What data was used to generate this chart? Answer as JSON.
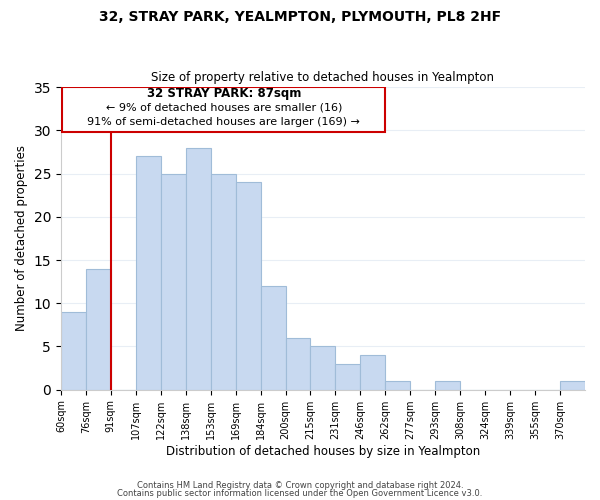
{
  "title": "32, STRAY PARK, YEALMPTON, PLYMOUTH, PL8 2HF",
  "subtitle": "Size of property relative to detached houses in Yealmpton",
  "xlabel": "Distribution of detached houses by size in Yealmpton",
  "ylabel": "Number of detached properties",
  "bar_labels": [
    "60sqm",
    "76sqm",
    "91sqm",
    "107sqm",
    "122sqm",
    "138sqm",
    "153sqm",
    "169sqm",
    "184sqm",
    "200sqm",
    "215sqm",
    "231sqm",
    "246sqm",
    "262sqm",
    "277sqm",
    "293sqm",
    "308sqm",
    "324sqm",
    "339sqm",
    "355sqm",
    "370sqm"
  ],
  "bar_values": [
    9,
    14,
    0,
    27,
    25,
    28,
    25,
    24,
    12,
    6,
    5,
    3,
    4,
    1,
    0,
    1,
    0,
    0,
    0,
    0,
    1
  ],
  "bar_color": "#c8d9f0",
  "bar_edge_color": "#a0bcd8",
  "property_line_x": 2,
  "ylim": [
    0,
    35
  ],
  "yticks": [
    0,
    5,
    10,
    15,
    20,
    25,
    30,
    35
  ],
  "annotation_title": "32 STRAY PARK: 87sqm",
  "annotation_line1": "← 9% of detached houses are smaller (16)",
  "annotation_line2": "91% of semi-detached houses are larger (169) →",
  "annotation_box_color": "#ffffff",
  "annotation_box_edge": "#cc0000",
  "footer_line1": "Contains HM Land Registry data © Crown copyright and database right 2024.",
  "footer_line2": "Contains public sector information licensed under the Open Government Licence v3.0.",
  "property_line_color": "#cc0000",
  "grid_color": "#e8eef5",
  "background_color": "#ffffff"
}
